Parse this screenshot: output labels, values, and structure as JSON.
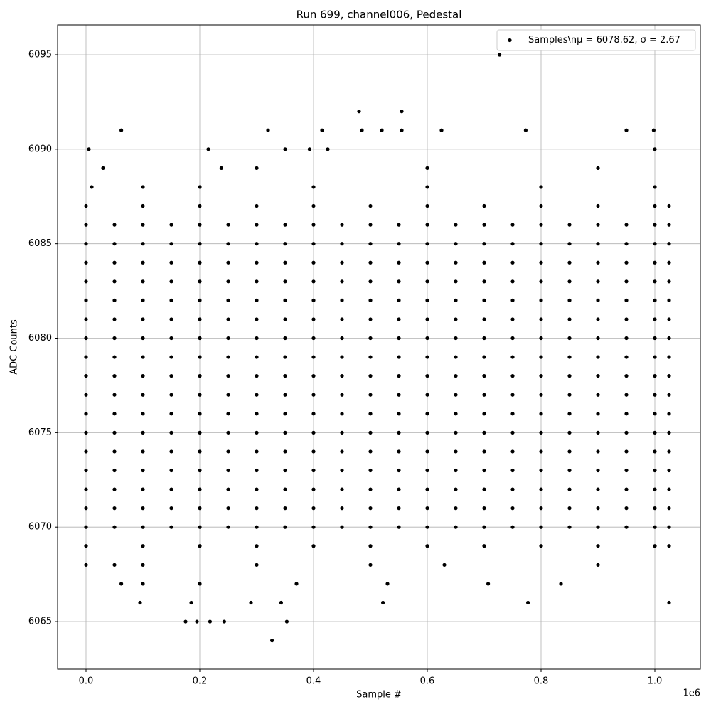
{
  "chart_data": {
    "type": "scatter",
    "title": "Run 699, channel006, Pedestal",
    "x_label": "Sample #",
    "y_label": "ADC Counts",
    "x_offset_label": "1e6",
    "xlim": [
      -50000,
      1080000
    ],
    "ylim": [
      6062.48,
      6096.58
    ],
    "xticks": [
      {
        "value": 0,
        "label": "0.0"
      },
      {
        "value": 200000,
        "label": "0.2"
      },
      {
        "value": 400000,
        "label": "0.4"
      },
      {
        "value": 600000,
        "label": "0.6"
      },
      {
        "value": 800000,
        "label": "0.8"
      },
      {
        "value": 1000000,
        "label": "1.0"
      }
    ],
    "yticks": [
      6065,
      6070,
      6075,
      6080,
      6085,
      6090,
      6095
    ],
    "grid": true,
    "legend": "upper right",
    "series": [
      {
        "name": "Samples\\nμ = 6078.62, σ = 2.67",
        "color": "#000000",
        "x": [
          727000,
          480000,
          555000,
          62000,
          320000,
          415000,
          485000,
          520000,
          555000,
          625000,
          773000,
          950000,
          998000,
          5000,
          215000,
          350000,
          393000,
          425000,
          1000000,
          30000,
          238000,
          300000,
          600000,
          900000,
          10000,
          100000,
          200000,
          400000,
          600000,
          800000,
          1000000,
          0,
          50000,
          100000,
          300000,
          500000,
          630000,
          900000,
          62000,
          100000,
          200000,
          370000,
          530000,
          707000,
          835000,
          95000,
          185000,
          290000,
          343000,
          522000,
          777000,
          1025000,
          175000,
          195000,
          218000,
          243000,
          353000,
          327000,
          0,
          100000,
          200000,
          300000,
          400000,
          500000,
          600000,
          700000,
          800000,
          900000,
          1000000,
          1025000,
          0,
          100000,
          200000,
          300000,
          400000,
          500000,
          600000,
          700000,
          800000,
          900000,
          1000000,
          1025000,
          0,
          50000,
          100000,
          150000,
          200000,
          250000,
          300000,
          350000,
          400000,
          450000,
          500000,
          550000,
          600000,
          650000,
          700000,
          750000,
          800000,
          850000,
          900000,
          950000,
          1000000,
          1025000,
          0,
          50000,
          100000,
          150000,
          200000,
          250000,
          300000,
          350000,
          400000,
          450000,
          500000,
          550000,
          600000,
          650000,
          700000,
          750000,
          800000,
          850000,
          900000,
          950000,
          1000000,
          1025000,
          0,
          50000,
          100000,
          150000,
          200000,
          250000,
          300000,
          350000,
          400000,
          450000,
          500000,
          550000,
          600000,
          650000,
          700000,
          750000,
          800000,
          850000,
          900000,
          950000,
          1000000,
          1025000,
          0,
          50000,
          100000,
          150000,
          200000,
          250000,
          300000,
          350000,
          400000,
          450000,
          500000,
          550000,
          600000,
          650000,
          700000,
          750000,
          800000,
          850000,
          900000,
          950000,
          1000000,
          1025000,
          0,
          50000,
          100000,
          150000,
          200000,
          250000,
          300000,
          350000,
          400000,
          450000,
          500000,
          550000,
          600000,
          650000,
          700000,
          750000,
          800000,
          850000,
          900000,
          950000,
          1000000,
          1025000,
          0,
          50000,
          100000,
          150000,
          200000,
          250000,
          300000,
          350000,
          400000,
          450000,
          500000,
          550000,
          600000,
          650000,
          700000,
          750000,
          800000,
          850000,
          900000,
          950000,
          1000000,
          1025000,
          0,
          50000,
          100000,
          150000,
          200000,
          250000,
          300000,
          350000,
          400000,
          450000,
          500000,
          550000,
          600000,
          650000,
          700000,
          750000,
          800000,
          850000,
          900000,
          950000,
          1000000,
          1025000,
          0,
          50000,
          100000,
          150000,
          200000,
          250000,
          300000,
          350000,
          400000,
          450000,
          500000,
          550000,
          600000,
          650000,
          700000,
          750000,
          800000,
          850000,
          900000,
          950000,
          1000000,
          1025000,
          0,
          50000,
          100000,
          150000,
          200000,
          250000,
          300000,
          350000,
          400000,
          450000,
          500000,
          550000,
          600000,
          650000,
          700000,
          750000,
          800000,
          850000,
          900000,
          950000,
          1000000,
          1025000,
          0,
          50000,
          100000,
          150000,
          200000,
          250000,
          300000,
          350000,
          400000,
          450000,
          500000,
          550000,
          600000,
          650000,
          700000,
          750000,
          800000,
          850000,
          900000,
          950000,
          1000000,
          1025000,
          0,
          50000,
          100000,
          150000,
          200000,
          250000,
          300000,
          350000,
          400000,
          450000,
          500000,
          550000,
          600000,
          650000,
          700000,
          750000,
          800000,
          850000,
          900000,
          950000,
          1000000,
          1025000,
          0,
          50000,
          100000,
          150000,
          200000,
          250000,
          300000,
          350000,
          400000,
          450000,
          500000,
          550000,
          600000,
          650000,
          700000,
          750000,
          800000,
          850000,
          900000,
          950000,
          1000000,
          1025000,
          0,
          50000,
          100000,
          150000,
          200000,
          250000,
          300000,
          350000,
          400000,
          450000,
          500000,
          550000,
          600000,
          650000,
          700000,
          750000,
          800000,
          850000,
          900000,
          950000,
          1000000,
          1025000,
          0,
          50000,
          100000,
          150000,
          200000,
          250000,
          300000,
          350000,
          400000,
          450000,
          500000,
          550000,
          600000,
          650000,
          700000,
          750000,
          800000,
          850000,
          900000,
          950000,
          1000000,
          1025000,
          0,
          50000,
          100000,
          150000,
          200000,
          250000,
          300000,
          350000,
          400000,
          450000,
          500000,
          550000,
          600000,
          650000,
          700000,
          750000,
          800000,
          850000,
          900000,
          950000,
          1000000,
          1025000,
          0,
          50000,
          100000,
          150000,
          200000,
          250000,
          300000,
          350000,
          400000,
          450000,
          500000,
          550000,
          600000,
          650000,
          700000,
          750000,
          800000,
          850000,
          900000,
          950000,
          1000000,
          1025000,
          0,
          50000,
          100000,
          150000,
          200000,
          250000,
          300000,
          350000,
          400000,
          450000,
          500000,
          550000,
          600000,
          650000,
          700000,
          750000,
          800000,
          850000,
          900000,
          950000,
          1000000,
          1025000
        ],
        "y": [
          6095,
          6092,
          6092,
          6091,
          6091,
          6091,
          6091,
          6091,
          6091,
          6091,
          6091,
          6091,
          6091,
          6090,
          6090,
          6090,
          6090,
          6090,
          6090,
          6089,
          6089,
          6089,
          6089,
          6089,
          6088,
          6088,
          6088,
          6088,
          6088,
          6088,
          6088,
          6068,
          6068,
          6068,
          6068,
          6068,
          6068,
          6068,
          6067,
          6067,
          6067,
          6067,
          6067,
          6067,
          6067,
          6066,
          6066,
          6066,
          6066,
          6066,
          6066,
          6066,
          6065,
          6065,
          6065,
          6065,
          6065,
          6064,
          6087,
          6087,
          6087,
          6087,
          6087,
          6087,
          6087,
          6087,
          6087,
          6087,
          6087,
          6087,
          6069,
          6069,
          6069,
          6069,
          6069,
          6069,
          6069,
          6069,
          6069,
          6069,
          6069,
          6069,
          6070,
          6070,
          6070,
          6070,
          6070,
          6070,
          6070,
          6070,
          6070,
          6070,
          6070,
          6070,
          6070,
          6070,
          6070,
          6070,
          6070,
          6070,
          6070,
          6070,
          6070,
          6070,
          6071,
          6071,
          6071,
          6071,
          6071,
          6071,
          6071,
          6071,
          6071,
          6071,
          6071,
          6071,
          6071,
          6071,
          6071,
          6071,
          6071,
          6071,
          6071,
          6071,
          6071,
          6071,
          6072,
          6072,
          6072,
          6072,
          6072,
          6072,
          6072,
          6072,
          6072,
          6072,
          6072,
          6072,
          6072,
          6072,
          6072,
          6072,
          6072,
          6072,
          6072,
          6072,
          6072,
          6072,
          6073,
          6073,
          6073,
          6073,
          6073,
          6073,
          6073,
          6073,
          6073,
          6073,
          6073,
          6073,
          6073,
          6073,
          6073,
          6073,
          6073,
          6073,
          6073,
          6073,
          6073,
          6073,
          6074,
          6074,
          6074,
          6074,
          6074,
          6074,
          6074,
          6074,
          6074,
          6074,
          6074,
          6074,
          6074,
          6074,
          6074,
          6074,
          6074,
          6074,
          6074,
          6074,
          6074,
          6074,
          6075,
          6075,
          6075,
          6075,
          6075,
          6075,
          6075,
          6075,
          6075,
          6075,
          6075,
          6075,
          6075,
          6075,
          6075,
          6075,
          6075,
          6075,
          6075,
          6075,
          6075,
          6075,
          6076,
          6076,
          6076,
          6076,
          6076,
          6076,
          6076,
          6076,
          6076,
          6076,
          6076,
          6076,
          6076,
          6076,
          6076,
          6076,
          6076,
          6076,
          6076,
          6076,
          6076,
          6076,
          6077,
          6077,
          6077,
          6077,
          6077,
          6077,
          6077,
          6077,
          6077,
          6077,
          6077,
          6077,
          6077,
          6077,
          6077,
          6077,
          6077,
          6077,
          6077,
          6077,
          6077,
          6077,
          6078,
          6078,
          6078,
          6078,
          6078,
          6078,
          6078,
          6078,
          6078,
          6078,
          6078,
          6078,
          6078,
          6078,
          6078,
          6078,
          6078,
          6078,
          6078,
          6078,
          6078,
          6078,
          6079,
          6079,
          6079,
          6079,
          6079,
          6079,
          6079,
          6079,
          6079,
          6079,
          6079,
          6079,
          6079,
          6079,
          6079,
          6079,
          6079,
          6079,
          6079,
          6079,
          6079,
          6079,
          6080,
          6080,
          6080,
          6080,
          6080,
          6080,
          6080,
          6080,
          6080,
          6080,
          6080,
          6080,
          6080,
          6080,
          6080,
          6080,
          6080,
          6080,
          6080,
          6080,
          6080,
          6080,
          6081,
          6081,
          6081,
          6081,
          6081,
          6081,
          6081,
          6081,
          6081,
          6081,
          6081,
          6081,
          6081,
          6081,
          6081,
          6081,
          6081,
          6081,
          6081,
          6081,
          6081,
          6081,
          6082,
          6082,
          6082,
          6082,
          6082,
          6082,
          6082,
          6082,
          6082,
          6082,
          6082,
          6082,
          6082,
          6082,
          6082,
          6082,
          6082,
          6082,
          6082,
          6082,
          6082,
          6082,
          6083,
          6083,
          6083,
          6083,
          6083,
          6083,
          6083,
          6083,
          6083,
          6083,
          6083,
          6083,
          6083,
          6083,
          6083,
          6083,
          6083,
          6083,
          6083,
          6083,
          6083,
          6083,
          6084,
          6084,
          6084,
          6084,
          6084,
          6084,
          6084,
          6084,
          6084,
          6084,
          6084,
          6084,
          6084,
          6084,
          6084,
          6084,
          6084,
          6084,
          6084,
          6084,
          6084,
          6084,
          6085,
          6085,
          6085,
          6085,
          6085,
          6085,
          6085,
          6085,
          6085,
          6085,
          6085,
          6085,
          6085,
          6085,
          6085,
          6085,
          6085,
          6085,
          6085,
          6085,
          6085,
          6085,
          6086,
          6086,
          6086,
          6086,
          6086,
          6086,
          6086,
          6086,
          6086,
          6086,
          6086,
          6086,
          6086,
          6086,
          6086,
          6086,
          6086,
          6086,
          6086,
          6086,
          6086,
          6086
        ]
      }
    ]
  }
}
